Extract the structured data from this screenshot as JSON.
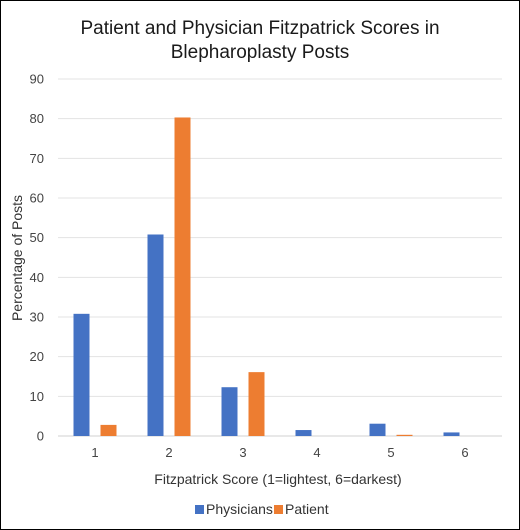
{
  "chart_data": {
    "type": "bar",
    "title_line1": "Patient and Physician Fitzpatrick Scores in",
    "title_line2": "Blepharoplasty Posts",
    "xlabel": "Fitzpatrick Score (1=lightest, 6=darkest)",
    "ylabel": "Percentage of Posts",
    "categories": [
      "1",
      "2",
      "3",
      "4",
      "5",
      "6"
    ],
    "ylim": [
      0,
      90
    ],
    "yticks": [
      0,
      10,
      20,
      30,
      40,
      50,
      60,
      70,
      80,
      90
    ],
    "grid": true,
    "legend_position": "bottom",
    "series": [
      {
        "name": "Physicians",
        "color": "#4472C4",
        "values": [
          30.8,
          50.8,
          12.3,
          1.5,
          3.1,
          0.9
        ]
      },
      {
        "name": "Patient",
        "color": "#ED7D31",
        "values": [
          2.8,
          80.3,
          16.1,
          0,
          0.3,
          0
        ]
      }
    ]
  }
}
